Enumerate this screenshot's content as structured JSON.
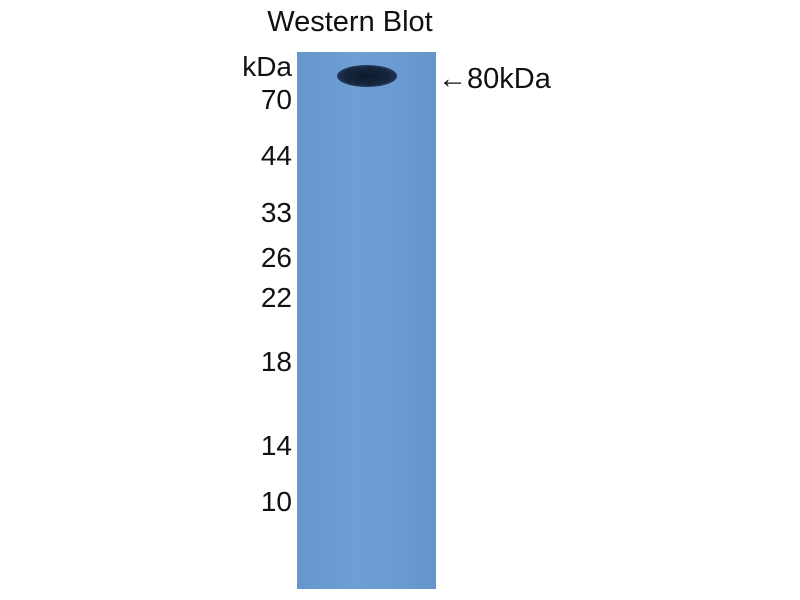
{
  "title": "Western Blot",
  "unit_label": "kDa",
  "markers": [
    "70",
    "44",
    "33",
    "26",
    "22",
    "18",
    "14",
    "10"
  ],
  "band_annotation": "←80kDa",
  "colors": {
    "membrane": "#6a9bd0",
    "band": "#16263f"
  }
}
